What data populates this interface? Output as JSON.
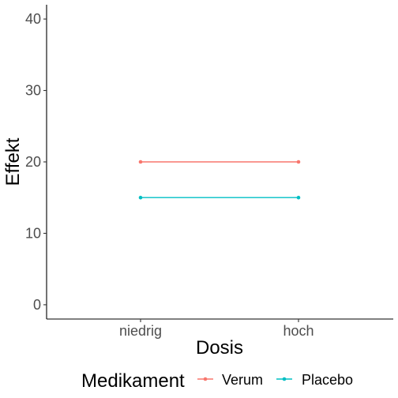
{
  "chart_data": {
    "type": "line",
    "xlabel": "Dosis",
    "ylabel": "Effekt",
    "categories": [
      "niedrig",
      "hoch"
    ],
    "ylim": [
      -2,
      42
    ],
    "yticks": [
      0,
      10,
      20,
      30,
      40
    ],
    "grid": false,
    "legend": {
      "title": "Medikament",
      "position": "bottom"
    },
    "series": [
      {
        "name": "Verum",
        "values": [
          20,
          20
        ],
        "color": "#F8766D"
      },
      {
        "name": "Placebo",
        "values": [
          15,
          15
        ],
        "color": "#00BFC4"
      }
    ]
  }
}
